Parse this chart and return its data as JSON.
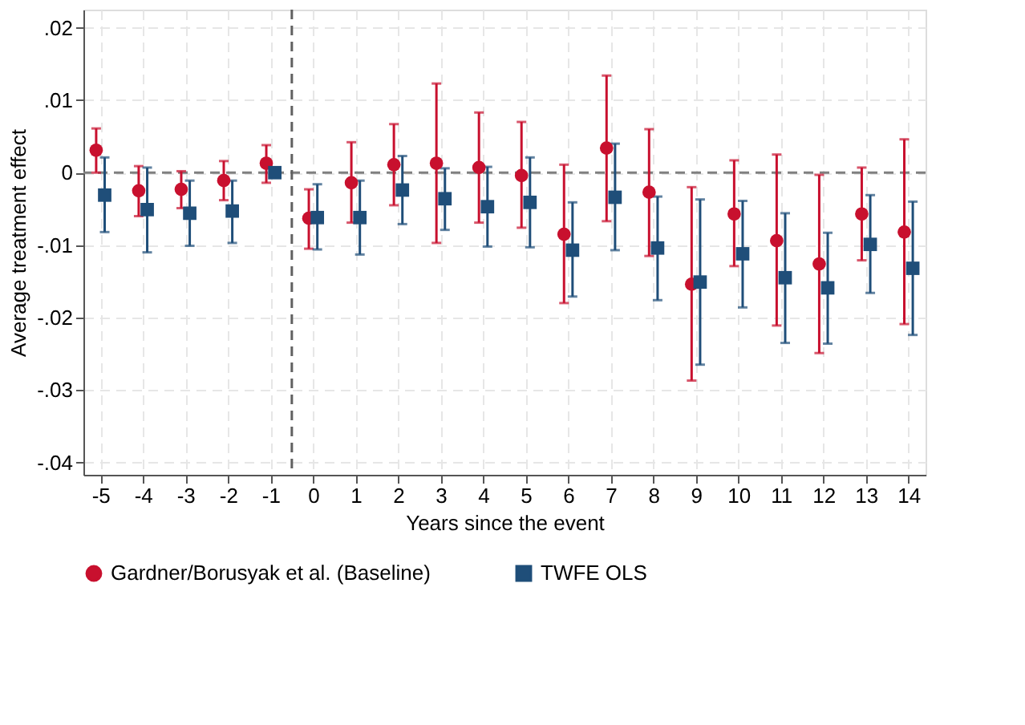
{
  "chart_data": {
    "type": "scatter",
    "xlabel": "Years since the event",
    "ylabel": "Average treatment effect",
    "xlim": [
      -5.4,
      14.4
    ],
    "xticks": [
      -5,
      -4,
      -3,
      -2,
      -1,
      0,
      1,
      2,
      3,
      4,
      5,
      6,
      7,
      8,
      9,
      10,
      11,
      12,
      13,
      14
    ],
    "ylim": [
      -0.0417,
      0.0225
    ],
    "yticks": [
      {
        "value": -0.04,
        "label": "-.04"
      },
      {
        "value": -0.03,
        "label": "-.03"
      },
      {
        "value": -0.02,
        "label": "-.02"
      },
      {
        "value": -0.01,
        "label": "-.01"
      },
      {
        "value": 0,
        "label": "0"
      },
      {
        "value": 0.01,
        "label": ".01"
      },
      {
        "value": 0.02,
        "label": ".02"
      }
    ],
    "grid": true,
    "legend": "bottom",
    "ref_lines": [
      {
        "axis": "y",
        "value": 0,
        "color": "#808080",
        "line_style": "dashed"
      },
      {
        "axis": "x",
        "value": -0.5,
        "color": "#606060",
        "line_style": "dashed"
      }
    ],
    "series": [
      {
        "name": "Gardner/Borusyak et al. (Baseline)",
        "color": "#c8102e",
        "marker": "circle",
        "x": [
          -5.1,
          -4.1,
          -3.1,
          -2.1,
          -1.1,
          -0.1,
          0.9,
          1.9,
          2.9,
          3.9,
          4.9,
          5.9,
          6.9,
          7.9,
          8.9,
          9.9,
          10.9,
          11.9,
          12.9,
          13.9
        ],
        "values": [
          0.0031,
          -0.0025,
          -0.0023,
          -0.0011,
          0.0013,
          -0.0063,
          -0.0014,
          0.0011,
          0.0013,
          0.0007,
          -0.0004,
          -0.0085,
          0.0034,
          -0.0027,
          -0.0154,
          -0.0057,
          -0.0094,
          -0.0126,
          -0.0057,
          -0.0082
        ],
        "errors": [
          [
            0,
            0.0061
          ],
          [
            -0.006,
            0.0009
          ],
          [
            -0.0049,
            0.0002
          ],
          [
            -0.0038,
            0.0016
          ],
          [
            -0.0014,
            0.0038
          ],
          [
            -0.0105,
            -0.0023
          ],
          [
            -0.0069,
            0.0042
          ],
          [
            -0.0045,
            0.0067
          ],
          [
            -0.0097,
            0.0123
          ],
          [
            -0.0069,
            0.0083
          ],
          [
            -0.0076,
            0.007
          ],
          [
            -0.018,
            0.0011
          ],
          [
            -0.0067,
            0.0134
          ],
          [
            -0.0115,
            0.006
          ],
          [
            -0.0287,
            -0.002
          ],
          [
            -0.0129,
            0.0017
          ],
          [
            -0.0211,
            0.0025
          ],
          [
            -0.0249,
            -0.0003
          ],
          [
            -0.0121,
            0.0007
          ],
          [
            -0.0209,
            0.0046
          ]
        ]
      },
      {
        "name": "TWFE OLS",
        "color": "#1f4e79",
        "marker": "square",
        "x": [
          -4.9,
          -3.9,
          -2.9,
          -1.9,
          -0.9,
          0.1,
          1.1,
          2.1,
          3.1,
          4.1,
          5.1,
          6.1,
          7.1,
          8.1,
          9.1,
          10.1,
          11.1,
          12.1,
          13.1,
          14.1
        ],
        "values": [
          -0.0031,
          -0.0051,
          -0.0056,
          -0.0053,
          0,
          -0.0062,
          -0.0062,
          -0.0024,
          -0.0036,
          -0.0047,
          -0.0041,
          -0.0107,
          -0.0034,
          -0.0104,
          -0.0151,
          -0.0112,
          -0.0145,
          -0.0159,
          -0.0099,
          -0.0132
        ],
        "errors": [
          [
            -0.0082,
            0.0021
          ],
          [
            -0.011,
            0.0007
          ],
          [
            -0.0101,
            -0.0011
          ],
          [
            -0.0097,
            -0.0011
          ],
          null,
          [
            -0.0106,
            -0.0016
          ],
          [
            -0.0113,
            -0.0011
          ],
          [
            -0.0071,
            0.0023
          ],
          [
            -0.0079,
            0.0006
          ],
          [
            -0.0102,
            0.0008
          ],
          [
            -0.0103,
            0.0021
          ],
          [
            -0.0171,
            -0.0041
          ],
          [
            -0.0107,
            0.004
          ],
          [
            -0.0176,
            -0.0033
          ],
          [
            -0.0265,
            -0.0037
          ],
          [
            -0.0186,
            -0.0039
          ],
          [
            -0.0235,
            -0.0056
          ],
          [
            -0.0236,
            -0.0083
          ],
          [
            -0.0166,
            -0.0031
          ],
          [
            -0.0224,
            -0.004
          ]
        ]
      }
    ]
  }
}
